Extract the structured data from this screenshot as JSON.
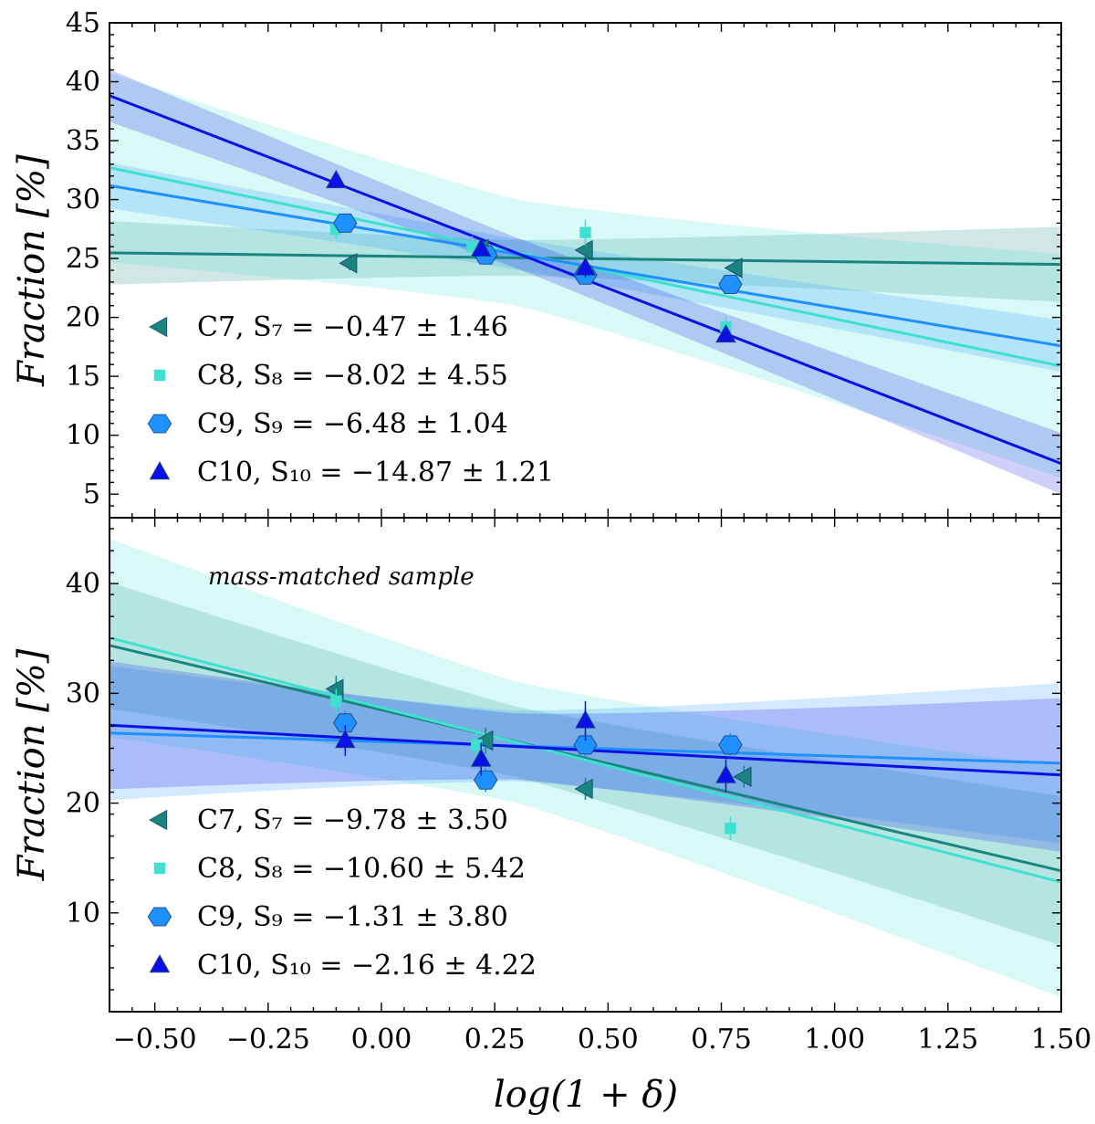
{
  "chart_data": [
    {
      "type": "scatter",
      "panel": "top",
      "title": "",
      "xlabel": "log(1 + δ)",
      "ylabel": "Fraction [%]",
      "xlim": [
        -0.6,
        1.5
      ],
      "ylim": [
        3,
        45
      ],
      "yticks": [
        5,
        10,
        15,
        20,
        25,
        30,
        35,
        40,
        45
      ],
      "grid": false,
      "legend_position": "lower-left",
      "series": [
        {
          "name": "C7",
          "legend_label": "C7,  S₇ = −0.47 ± 1.46",
          "color": "#1a857f",
          "marker": "triangle-left",
          "x": [
            -0.07,
            0.22,
            0.45,
            0.78
          ],
          "y": [
            24.6,
            25.8,
            25.7,
            24.2
          ],
          "yerr": [
            0.6,
            0.6,
            0.6,
            0.5
          ],
          "fit": {
            "slope": -0.47,
            "intercept": 25.2
          },
          "band_width": [
            1.5,
            3.2
          ]
        },
        {
          "name": "C8",
          "legend_label": "C8,  S₈ = −8.02 ± 4.55",
          "color": "#40e0d0",
          "marker": "square",
          "x": [
            -0.1,
            0.2,
            0.45,
            0.76
          ],
          "y": [
            27.5,
            26.0,
            27.2,
            19.2
          ],
          "yerr": [
            0.9,
            0.9,
            1.1,
            0.9
          ],
          "fit": {
            "slope": -8.02,
            "intercept": 27.9
          },
          "band_width": [
            4.5,
            9.5
          ]
        },
        {
          "name": "C9",
          "legend_label": "C9,  S₉ = −6.48 ± 1.04",
          "color": "#1e90ff",
          "marker": "hexagon",
          "x": [
            -0.08,
            0.23,
            0.45,
            0.77
          ],
          "y": [
            28.0,
            25.3,
            23.6,
            22.8
          ],
          "yerr": [
            0.7,
            0.7,
            0.7,
            0.7
          ],
          "fit": {
            "slope": -6.48,
            "intercept": 27.3
          },
          "band_width": [
            1.3,
            2.2
          ]
        },
        {
          "name": "C10",
          "legend_label": "C10,  S₁₀ = −14.87 ± 1.21",
          "color": "#0a10e6",
          "marker": "triangle-up",
          "x": [
            -0.1,
            0.22,
            0.45,
            0.76
          ],
          "y": [
            31.6,
            25.8,
            24.2,
            18.5
          ],
          "yerr": [
            0.6,
            0.6,
            0.8,
            0.6
          ],
          "fit": {
            "slope": -14.87,
            "intercept": 29.9
          },
          "band_width": [
            1.3,
            2.6
          ]
        }
      ]
    },
    {
      "type": "scatter",
      "panel": "bottom",
      "title": "",
      "annotation": "mass-matched sample",
      "xlabel": "log(1 + δ)",
      "ylabel": "Fraction [%]",
      "xlim": [
        -0.6,
        1.5
      ],
      "ylim": [
        1,
        46
      ],
      "yticks": [
        10,
        20,
        30,
        40
      ],
      "xticks": [
        -0.5,
        -0.25,
        0.0,
        0.25,
        0.5,
        0.75,
        1.0,
        1.25,
        1.5
      ],
      "xticklabels": [
        "−0.50",
        "−0.25",
        "0.00",
        "0.25",
        "0.50",
        "0.75",
        "1.00",
        "1.25",
        "1.50"
      ],
      "grid": false,
      "legend_position": "lower-left",
      "series": [
        {
          "name": "C7",
          "legend_label": "C7,  S₇ = −9.78 ± 3.50",
          "color": "#1a857f",
          "marker": "triangle-left",
          "x": [
            -0.1,
            0.23,
            0.45,
            0.8
          ],
          "y": [
            30.4,
            25.7,
            21.3,
            22.4
          ],
          "yerr": [
            1.2,
            1.2,
            1.0,
            1.0
          ],
          "fit": {
            "slope": -9.78,
            "intercept": 28.5
          },
          "band_width": [
            3.2,
            6.8
          ]
        },
        {
          "name": "C8",
          "legend_label": "C8,  S₈ = −10.60 ± 5.42",
          "color": "#40e0d0",
          "marker": "square",
          "x": [
            -0.1,
            0.21,
            0.45,
            0.77
          ],
          "y": [
            29.3,
            25.3,
            27.4,
            17.7
          ],
          "yerr": [
            1.1,
            1.1,
            1.2,
            1.1
          ],
          "fit": {
            "slope": -10.6,
            "intercept": 28.7
          },
          "band_width": [
            5.5,
            10.5
          ]
        },
        {
          "name": "C9",
          "legend_label": "C9,  S₉ = −1.31 ± 3.80",
          "color": "#1e90ff",
          "marker": "hexagon",
          "x": [
            -0.08,
            0.23,
            0.45,
            0.77
          ],
          "y": [
            27.3,
            22.1,
            25.3,
            25.3
          ],
          "yerr": [
            1.1,
            1.1,
            1.1,
            1.1
          ],
          "fit": {
            "slope": -1.31,
            "intercept": 25.6
          },
          "band_width": [
            3.2,
            7.3
          ]
        },
        {
          "name": "C10",
          "legend_label": "C10,  S₁₀ = −2.16 ± 4.22",
          "color": "#0a10e6",
          "marker": "triangle-up",
          "x": [
            -0.08,
            0.22,
            0.45,
            0.76
          ],
          "y": [
            25.7,
            24.0,
            27.5,
            22.5
          ],
          "yerr": [
            1.4,
            1.5,
            1.8,
            1.5
          ],
          "fit": {
            "slope": -2.16,
            "intercept": 25.8
          },
          "band_width": [
            3.0,
            7.0
          ]
        }
      ]
    }
  ]
}
